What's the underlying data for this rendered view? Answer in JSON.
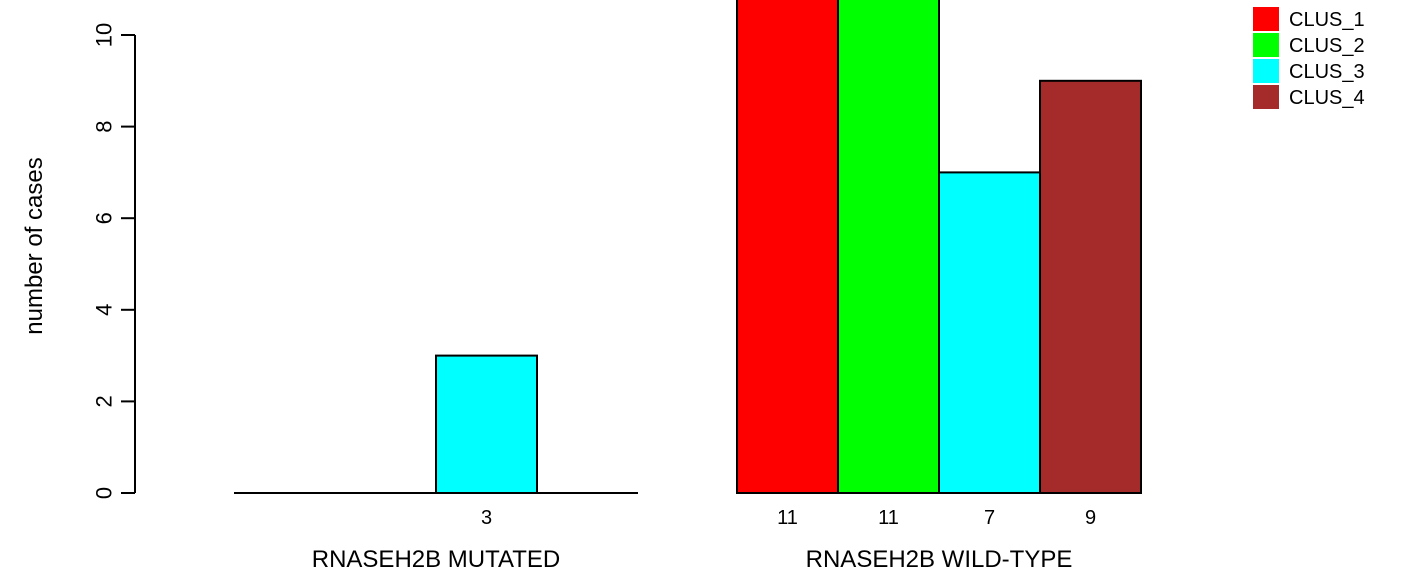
{
  "chart_data": {
    "type": "bar",
    "ylabel": "number of cases",
    "ylim": [
      0,
      10
    ],
    "yticks": [
      "0",
      "2",
      "4",
      "6",
      "8",
      "10"
    ],
    "groups": [
      {
        "label": "RNASEH2B MUTATED",
        "values": [
          0,
          0,
          3,
          0
        ],
        "count_labels": [
          "",
          "",
          "3",
          ""
        ]
      },
      {
        "label": "RNASEH2B WILD-TYPE",
        "values": [
          11,
          11,
          7,
          9
        ],
        "count_labels": [
          "11",
          "11",
          "7",
          "9"
        ]
      }
    ],
    "series": [
      {
        "name": "CLUS_1",
        "color": "#ff0000"
      },
      {
        "name": "CLUS_2",
        "color": "#00ff00"
      },
      {
        "name": "CLUS_3",
        "color": "#00ffff"
      },
      {
        "name": "CLUS_4",
        "color": "#a52a2a"
      }
    ],
    "legend_position": "top-right",
    "grid": false
  }
}
